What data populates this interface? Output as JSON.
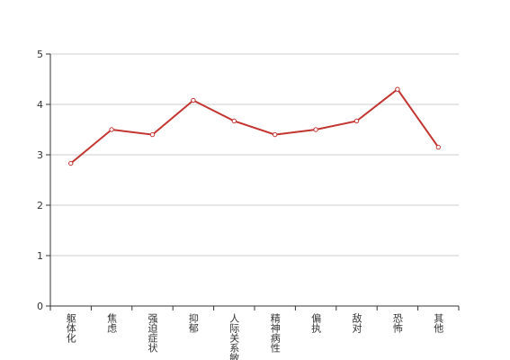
{
  "chart_data": {
    "type": "line",
    "categories": [
      "躯体化",
      "焦虑",
      "强迫症状",
      "抑郁",
      "人际关系敏感",
      "精神病性",
      "偏执",
      "敌对",
      "恐怖",
      "其他"
    ],
    "series": [
      {
        "color": "#c23531",
        "values": [
          2.83,
          3.5,
          3.4,
          4.08,
          3.67,
          3.4,
          3.5,
          3.67,
          4.3,
          3.15
        ]
      }
    ],
    "ylim": [
      0,
      5
    ],
    "yticks": [
      0,
      1,
      2,
      3,
      4,
      5
    ],
    "grid": true
  }
}
